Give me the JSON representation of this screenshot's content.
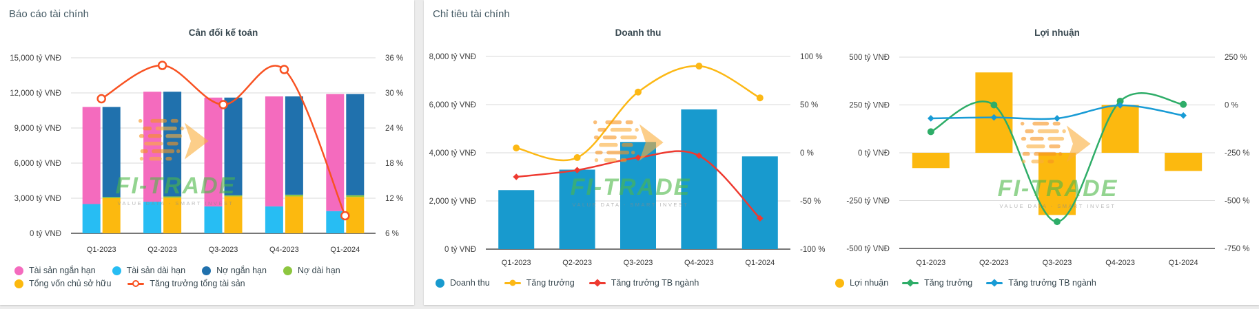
{
  "left_panel": {
    "title": "Báo cáo tài chính"
  },
  "right_panel": {
    "title": "Chỉ tiêu tài chính"
  },
  "watermark": {
    "brand": "FI-TRADE",
    "tagline": "VALUE DATA - SMART INVEST"
  },
  "chart_data": [
    {
      "id": "can-doi-ke-toan",
      "type": "stacked-bar-line-combo",
      "title": "Cân đối kế toán",
      "categories": [
        "Q1-2023",
        "Q2-2023",
        "Q3-2023",
        "Q4-2023",
        "Q1-2024"
      ],
      "left_axis": {
        "unit": "tỷ VNĐ",
        "min": 0,
        "max": 15000,
        "step": 3000,
        "tick_labels": [
          "15,000 tỷ VNĐ",
          "12,000 tỷ VNĐ",
          "9,000 tỷ VNĐ",
          "6,000 tỷ VNĐ",
          "3,000 tỷ VNĐ",
          "0 tỷ VNĐ"
        ]
      },
      "right_axis": {
        "unit": "%",
        "min": 6,
        "max": 36,
        "step": 6,
        "tick_labels": [
          "36 %",
          "30 %",
          "24 %",
          "18 %",
          "12 %",
          "6 %"
        ]
      },
      "stacks": [
        {
          "name": "tai-san",
          "segments": [
            {
              "label": "Tài sản dài hạn",
              "color": "#27bdf3",
              "values": [
                2500,
                2700,
                2300,
                2300,
                1900
              ]
            },
            {
              "label": "Tài sản ngắn hạn",
              "color": "#f46bbe",
              "values": [
                8300,
                9400,
                9300,
                9400,
                10000
              ]
            }
          ]
        },
        {
          "name": "nguon-von",
          "segments": [
            {
              "label": "Tổng vốn chủ sở hữu",
              "color": "#fcb90f",
              "values": [
                3000,
                3050,
                3150,
                3150,
                3100
              ]
            },
            {
              "label": "Nợ dài hạn",
              "color": "#8dc63f",
              "values": [
                100,
                100,
                100,
                150,
                150
              ]
            },
            {
              "label": "Nợ ngắn hạn",
              "color": "#2071ad",
              "values": [
                7700,
                8950,
                8350,
                8400,
                8650
              ]
            }
          ]
        }
      ],
      "lines": [
        {
          "label": "Tăng trưởng tổng tài sản",
          "color": "#f85222",
          "axis": "right",
          "marker": "open-circle",
          "values": [
            29,
            34.7,
            28,
            34,
            9
          ]
        }
      ],
      "legend": [
        {
          "label": "Tài sản ngắn hạn",
          "color": "#f46bbe",
          "marker": "dot"
        },
        {
          "label": "Tài sản dài hạn",
          "color": "#27bdf3",
          "marker": "dot"
        },
        {
          "label": "Nợ ngắn hạn",
          "color": "#2071ad",
          "marker": "dot"
        },
        {
          "label": "Nợ dài hạn",
          "color": "#8dc63f",
          "marker": "dot"
        },
        {
          "label": "Tổng vốn chủ sở hữu",
          "color": "#fcb90f",
          "marker": "dot"
        },
        {
          "label": "Tăng trưởng tổng tài sản",
          "color": "#f85222",
          "marker": "line-open-circle"
        }
      ]
    },
    {
      "id": "doanh-thu",
      "type": "bar-line-combo",
      "title": "Doanh thu",
      "categories": [
        "Q1-2023",
        "Q2-2023",
        "Q3-2023",
        "Q4-2023",
        "Q1-2024"
      ],
      "left_axis": {
        "unit": "tỷ VNĐ",
        "min": 0,
        "max": 8000,
        "step": 2000,
        "tick_labels": [
          "8,000 tỷ VNĐ",
          "6,000 tỷ VNĐ",
          "4,000 tỷ VNĐ",
          "2,000 tỷ VNĐ",
          "0 tỷ VNĐ"
        ]
      },
      "right_axis": {
        "unit": "%",
        "min": -100,
        "max": 100,
        "step": 50,
        "tick_labels": [
          "100 %",
          "50 %",
          "0 %",
          "-50 %",
          "-100 %"
        ]
      },
      "bars": {
        "label": "Doanh thu",
        "color": "#189ace",
        "values": [
          2450,
          3300,
          4450,
          5800,
          3850
        ]
      },
      "lines": [
        {
          "label": "Tăng trưởng",
          "color": "#fcb815",
          "axis": "right",
          "marker": "circle",
          "values": [
            5,
            -5,
            63,
            90,
            57
          ]
        },
        {
          "label": "Tăng trưởng TB ngành",
          "color": "#ee3a30",
          "axis": "right",
          "marker": "diamond",
          "values": [
            -25,
            -18,
            -5,
            -3,
            -68
          ]
        }
      ],
      "legend": [
        {
          "label": "Doanh thu",
          "color": "#189ace",
          "marker": "dot"
        },
        {
          "label": "Tăng trưởng",
          "color": "#fcb815",
          "marker": "line-circle"
        },
        {
          "label": "Tăng trưởng TB ngành",
          "color": "#ee3a30",
          "marker": "line-diamond"
        }
      ]
    },
    {
      "id": "loi-nhuan",
      "type": "bar-line-combo",
      "title": "Lợi nhuận",
      "categories": [
        "Q1-2023",
        "Q2-2023",
        "Q3-2023",
        "Q4-2023",
        "Q1-2024"
      ],
      "left_axis": {
        "unit": "tỷ VNĐ",
        "min": -500,
        "max": 500,
        "step": 250,
        "tick_labels": [
          "500 tỷ VNĐ",
          "250 tỷ VNĐ",
          "0 tỷ VNĐ",
          "-250 tỷ VNĐ",
          "-500 tỷ VNĐ"
        ]
      },
      "right_axis": {
        "unit": "%",
        "min": -750,
        "max": 250,
        "step": 250,
        "tick_labels": [
          "250 %",
          "0 %",
          "-250 %",
          "-500 %",
          "-750 %"
        ]
      },
      "bars": {
        "label": "Lợi nhuận",
        "color": "#fcb90f",
        "values": [
          -80,
          420,
          -325,
          250,
          -95
        ]
      },
      "lines": [
        {
          "label": "Tăng trưởng",
          "color": "#2ead68",
          "axis": "right",
          "marker": "circle",
          "values": [
            -140,
            0,
            -610,
            20,
            3
          ]
        },
        {
          "label": "Tăng trưởng TB ngành",
          "color": "#189bd5",
          "axis": "right",
          "marker": "diamond",
          "values": [
            -70,
            -65,
            -70,
            -2,
            -55
          ]
        }
      ],
      "legend": [
        {
          "label": "Lợi nhuận",
          "color": "#fcb90f",
          "marker": "dot"
        },
        {
          "label": "Tăng trưởng",
          "color": "#2ead68",
          "marker": "line-diamond"
        },
        {
          "label": "Tăng trưởng TB ngành",
          "color": "#189bd5",
          "marker": "line-diamond"
        }
      ]
    }
  ]
}
